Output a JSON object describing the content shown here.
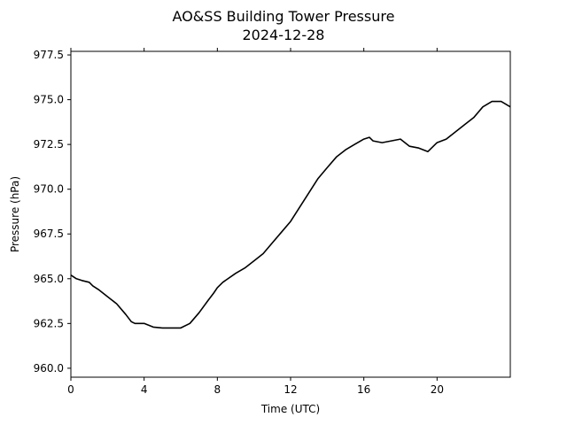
{
  "chart_data": {
    "type": "line",
    "title": "AO&SS Building Tower Pressure",
    "subtitle": "2024-12-28",
    "xlabel": "Time (UTC)",
    "ylabel": "Pressure (hPa)",
    "xlim": [
      0,
      24
    ],
    "ylim": [
      959.5,
      977.7
    ],
    "x_ticks": [
      0,
      4,
      8,
      12,
      16,
      20
    ],
    "x_tick_labels": [
      "0",
      "4",
      "8",
      "12",
      "16",
      "20"
    ],
    "y_ticks": [
      960.0,
      962.5,
      965.0,
      967.5,
      970.0,
      972.5,
      975.0,
      977.5
    ],
    "y_tick_labels": [
      "960.0",
      "962.5",
      "965.0",
      "967.5",
      "970.0",
      "972.5",
      "975.0",
      "977.5"
    ],
    "grid": false,
    "series": [
      {
        "color": "#000000",
        "x": [
          0,
          0.3,
          0.6,
          1.0,
          1.2,
          1.5,
          2.0,
          2.5,
          3.0,
          3.3,
          3.5,
          4.0,
          4.5,
          5.0,
          5.5,
          6.0,
          6.5,
          7.0,
          7.5,
          7.8,
          8.0,
          8.3,
          9.0,
          9.5,
          10.0,
          10.5,
          11.0,
          11.5,
          12.0,
          12.5,
          13.0,
          13.5,
          14.0,
          14.5,
          15.0,
          15.5,
          16.0,
          16.3,
          16.5,
          17.0,
          17.5,
          18.0,
          18.5,
          19.0,
          19.5,
          20.0,
          20.5,
          21.0,
          21.5,
          22.0,
          22.5,
          23.0,
          23.5,
          24.0
        ],
        "y": [
          965.2,
          965.0,
          964.9,
          964.8,
          964.6,
          964.4,
          964.0,
          963.6,
          963.0,
          962.6,
          962.5,
          962.5,
          962.3,
          962.25,
          962.25,
          962.25,
          962.5,
          963.1,
          963.8,
          964.2,
          964.5,
          964.8,
          965.3,
          965.6,
          966.0,
          966.4,
          967.0,
          967.6,
          968.2,
          969.0,
          969.8,
          970.6,
          971.2,
          971.8,
          972.2,
          972.5,
          972.8,
          972.9,
          972.7,
          972.6,
          972.7,
          972.8,
          972.4,
          972.3,
          972.1,
          972.6,
          972.8,
          973.2,
          973.6,
          974.0,
          974.6,
          974.9,
          974.9,
          974.6
        ]
      }
    ]
  }
}
